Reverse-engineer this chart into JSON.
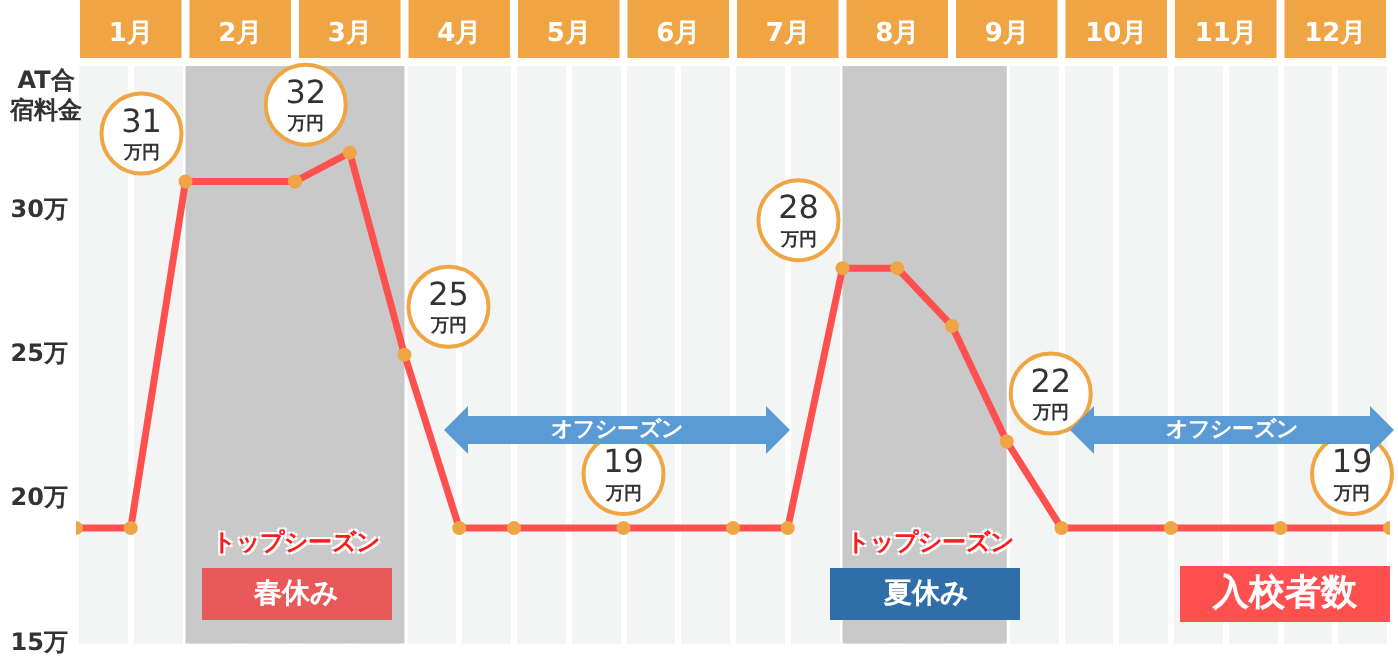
{
  "chart_data": {
    "type": "line",
    "ylabel": "AT合宿料金",
    "x": [
      0,
      0.5,
      1,
      2,
      2.5,
      3,
      3.5,
      4,
      5,
      6,
      6.5,
      7,
      7.5,
      8,
      8.5,
      9,
      10,
      11,
      12
    ],
    "series": [
      {
        "color": "#ff5050",
        "values": [
          19,
          19,
          31,
          31,
          32,
          25,
          19,
          19,
          19,
          19,
          19,
          28,
          28,
          26,
          22,
          19,
          19,
          19,
          19
        ],
        "value_labels": [
          null,
          null,
          "31万円",
          null,
          "32万円",
          "25万円",
          null,
          null,
          "19万円",
          null,
          null,
          "28万円",
          null,
          null,
          "22万円",
          null,
          null,
          null,
          "19万円"
        ]
      }
    ],
    "marker": "circle",
    "legend": false,
    "xlim": [
      0,
      12
    ],
    "xticks": [
      {
        "value": 0.5,
        "label": "1月"
      },
      {
        "value": 1.5,
        "label": "2月"
      },
      {
        "value": 2.5,
        "label": "3月"
      },
      {
        "value": 3.5,
        "label": "4月"
      },
      {
        "value": 4.5,
        "label": "5月"
      },
      {
        "value": 5.5,
        "label": "6月"
      },
      {
        "value": 6.5,
        "label": "7月"
      },
      {
        "value": 7.5,
        "label": "8月"
      },
      {
        "value": 8.5,
        "label": "9月"
      },
      {
        "value": 9.5,
        "label": "10月"
      },
      {
        "value": 10.5,
        "label": "11月"
      },
      {
        "value": 11.5,
        "label": "12月"
      }
    ],
    "ylim": [
      15,
      35
    ],
    "yticks": [
      {
        "value": 15,
        "label": "15万"
      },
      {
        "value": 20,
        "label": "20万"
      },
      {
        "value": 25,
        "label": "25万"
      },
      {
        "value": 30,
        "label": "30万"
      }
    ],
    "bands": [
      {
        "axis": "x",
        "from": 1,
        "to": 3,
        "label": "春休み",
        "color": "#c8c9c8"
      },
      {
        "axis": "x",
        "from": 7,
        "to": 8.5,
        "label": "夏休み",
        "color": "#c8c9c8"
      }
    ],
    "annotations": [
      "トップシーズン",
      "トップシーズン",
      "オフシーズン",
      "オフシーズン",
      "入校者数"
    ]
  }
}
